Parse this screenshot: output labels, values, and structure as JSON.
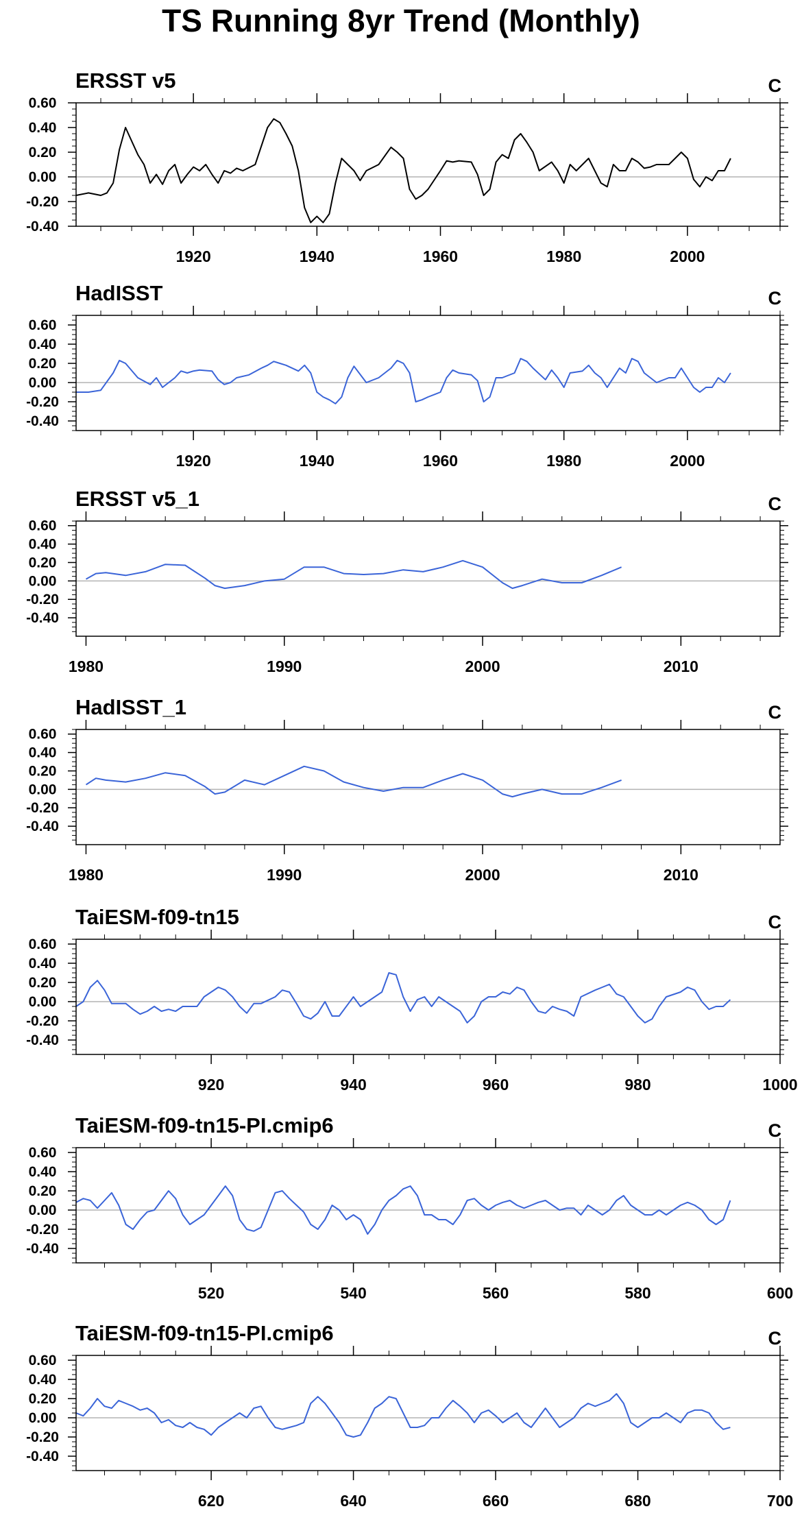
{
  "title": "TS Running 8yr Trend (Monthly)",
  "colors": {
    "obs_line": "#000000",
    "model_line": "#3a64d8",
    "zero_line": "#b3b3b3",
    "frame": "#000000"
  },
  "chart_data": [
    {
      "type": "line",
      "title": "ERSST v5",
      "units": "C",
      "color": "#000000",
      "xlim": [
        1901,
        2015
      ],
      "ylim": [
        -0.4,
        0.6
      ],
      "yticks": [
        -0.4,
        -0.2,
        0.0,
        0.2,
        0.4,
        0.6
      ],
      "ytick_labels": [
        "-0.40",
        "-0.20",
        "0.00",
        "0.20",
        "0.40",
        "0.60"
      ],
      "xticks": [
        1920,
        1940,
        1960,
        1980,
        2000
      ],
      "xtick_labels": [
        "1920",
        "1940",
        "1960",
        "1980",
        "2000"
      ],
      "x": [
        1901,
        1903,
        1905,
        1906,
        1907,
        1908,
        1909,
        1911,
        1912,
        1913,
        1914,
        1915,
        1916,
        1917,
        1918,
        1919,
        1920,
        1921,
        1922,
        1923,
        1924,
        1925,
        1926,
        1927,
        1928,
        1930,
        1931,
        1932,
        1933,
        1934,
        1935,
        1936,
        1937,
        1938,
        1939,
        1940,
        1941,
        1942,
        1943,
        1944,
        1945,
        1946,
        1947,
        1948,
        1950,
        1952,
        1953,
        1954,
        1955,
        1956,
        1957,
        1958,
        1960,
        1961,
        1962,
        1963,
        1965,
        1966,
        1967,
        1968,
        1969,
        1970,
        1971,
        1972,
        1973,
        1974,
        1975,
        1976,
        1978,
        1979,
        1980,
        1981,
        1982,
        1984,
        1985,
        1986,
        1987,
        1988,
        1989,
        1990,
        1991,
        1992,
        1993,
        1994,
        1995,
        1997,
        1998,
        1999,
        2000,
        2001,
        2002,
        2003,
        2004,
        2005,
        2006,
        2007
      ],
      "y": [
        -0.15,
        -0.13,
        -0.15,
        -0.13,
        -0.05,
        0.22,
        0.4,
        0.18,
        0.1,
        -0.05,
        0.02,
        -0.06,
        0.05,
        0.1,
        -0.05,
        0.02,
        0.08,
        0.05,
        0.1,
        0.02,
        -0.05,
        0.05,
        0.03,
        0.07,
        0.05,
        0.1,
        0.25,
        0.4,
        0.47,
        0.44,
        0.35,
        0.25,
        0.05,
        -0.25,
        -0.37,
        -0.32,
        -0.37,
        -0.3,
        -0.05,
        0.15,
        0.1,
        0.05,
        -0.03,
        0.05,
        0.1,
        0.24,
        0.2,
        0.15,
        -0.1,
        -0.18,
        -0.15,
        -0.1,
        0.05,
        0.13,
        0.12,
        0.13,
        0.12,
        0.02,
        -0.15,
        -0.1,
        0.12,
        0.18,
        0.15,
        0.3,
        0.35,
        0.28,
        0.2,
        0.05,
        0.12,
        0.05,
        -0.05,
        0.1,
        0.05,
        0.15,
        0.05,
        -0.05,
        -0.08,
        0.1,
        0.05,
        0.05,
        0.15,
        0.12,
        0.07,
        0.08,
        0.1,
        0.1,
        0.15,
        0.2,
        0.15,
        -0.02,
        -0.08,
        0.0,
        -0.03,
        0.05,
        0.05,
        0.15
      ]
    },
    {
      "type": "line",
      "title": "HadISST",
      "units": "C",
      "color": "#3a64d8",
      "xlim": [
        1901,
        2015
      ],
      "ylim": [
        -0.5,
        0.7
      ],
      "yticks": [
        -0.4,
        -0.2,
        0.0,
        0.2,
        0.4,
        0.6
      ],
      "ytick_labels": [
        "-0.40",
        "-0.20",
        "0.00",
        "0.20",
        "0.40",
        "0.60"
      ],
      "xticks": [
        1920,
        1940,
        1960,
        1980,
        2000
      ],
      "xtick_labels": [
        "1920",
        "1940",
        "1960",
        "1980",
        "2000"
      ],
      "x": [
        1901,
        1903,
        1905,
        1907,
        1908,
        1909,
        1911,
        1913,
        1914,
        1915,
        1917,
        1918,
        1919,
        1920,
        1921,
        1923,
        1924,
        1925,
        1926,
        1927,
        1929,
        1931,
        1932,
        1933,
        1934,
        1935,
        1937,
        1938,
        1939,
        1940,
        1941,
        1942,
        1943,
        1944,
        1945,
        1946,
        1948,
        1950,
        1952,
        1953,
        1954,
        1955,
        1956,
        1957,
        1958,
        1960,
        1961,
        1962,
        1963,
        1965,
        1966,
        1967,
        1968,
        1969,
        1970,
        1972,
        1973,
        1974,
        1975,
        1977,
        1978,
        1979,
        1980,
        1981,
        1983,
        1984,
        1985,
        1986,
        1987,
        1989,
        1990,
        1991,
        1992,
        1993,
        1995,
        1997,
        1998,
        1999,
        2000,
        2001,
        2002,
        2003,
        2004,
        2005,
        2006,
        2007
      ],
      "y": [
        -0.1,
        -0.1,
        -0.08,
        0.1,
        0.23,
        0.2,
        0.05,
        -0.02,
        0.05,
        -0.05,
        0.05,
        0.12,
        0.1,
        0.12,
        0.13,
        0.12,
        0.03,
        -0.02,
        0.0,
        0.05,
        0.08,
        0.15,
        0.18,
        0.22,
        0.2,
        0.18,
        0.12,
        0.18,
        0.1,
        -0.1,
        -0.15,
        -0.18,
        -0.22,
        -0.15,
        0.05,
        0.17,
        0.0,
        0.05,
        0.15,
        0.23,
        0.2,
        0.1,
        -0.2,
        -0.18,
        -0.15,
        -0.1,
        0.05,
        0.13,
        0.1,
        0.08,
        0.02,
        -0.2,
        -0.15,
        0.05,
        0.05,
        0.1,
        0.25,
        0.22,
        0.15,
        0.03,
        0.13,
        0.05,
        -0.05,
        0.1,
        0.12,
        0.18,
        0.1,
        0.05,
        -0.05,
        0.15,
        0.1,
        0.25,
        0.22,
        0.1,
        0.0,
        0.05,
        0.05,
        0.15,
        0.05,
        -0.05,
        -0.1,
        -0.05,
        -0.05,
        0.05,
        0.0,
        0.1
      ]
    },
    {
      "type": "line",
      "title": "ERSST v5_1",
      "units": "C",
      "color": "#3a64d8",
      "xlim": [
        1979.5,
        2015
      ],
      "ylim": [
        -0.6,
        0.65
      ],
      "yticks": [
        -0.4,
        -0.2,
        0.0,
        0.2,
        0.4,
        0.6
      ],
      "ytick_labels": [
        "-0.40",
        "-0.20",
        "0.00",
        "0.20",
        "0.40",
        "0.60"
      ],
      "xticks": [
        1980,
        1990,
        2000,
        2010
      ],
      "xtick_labels": [
        "1980",
        "1990",
        "2000",
        "2010"
      ],
      "x": [
        1980,
        1980.5,
        1981,
        1982,
        1983,
        1984,
        1985,
        1986,
        1986.5,
        1987,
        1988,
        1989,
        1990,
        1991,
        1992,
        1993,
        1994,
        1995,
        1996,
        1997,
        1998,
        1999,
        2000,
        2001,
        2001.5,
        2002,
        2003,
        2004,
        2005,
        2006,
        2007
      ],
      "y": [
        0.02,
        0.08,
        0.09,
        0.06,
        0.1,
        0.18,
        0.17,
        0.03,
        -0.05,
        -0.08,
        -0.05,
        0.0,
        0.02,
        0.15,
        0.15,
        0.08,
        0.07,
        0.08,
        0.12,
        0.1,
        0.15,
        0.22,
        0.15,
        -0.02,
        -0.08,
        -0.05,
        0.02,
        -0.02,
        -0.02,
        0.06,
        0.15
      ]
    },
    {
      "type": "line",
      "title": "HadISST_1",
      "units": "C",
      "color": "#3a64d8",
      "xlim": [
        1979.5,
        2015
      ],
      "ylim": [
        -0.6,
        0.65
      ],
      "yticks": [
        -0.4,
        -0.2,
        0.0,
        0.2,
        0.4,
        0.6
      ],
      "ytick_labels": [
        "-0.40",
        "-0.20",
        "0.00",
        "0.20",
        "0.40",
        "0.60"
      ],
      "xticks": [
        1980,
        1990,
        2000,
        2010
      ],
      "xtick_labels": [
        "1980",
        "1990",
        "2000",
        "2010"
      ],
      "x": [
        1980,
        1980.5,
        1981,
        1982,
        1983,
        1984,
        1985,
        1986,
        1986.5,
        1987,
        1988,
        1989,
        1990,
        1991,
        1992,
        1993,
        1994,
        1995,
        1996,
        1997,
        1998,
        1999,
        2000,
        2001,
        2001.5,
        2002,
        2003,
        2004,
        2005,
        2006,
        2007
      ],
      "y": [
        0.05,
        0.12,
        0.1,
        0.08,
        0.12,
        0.18,
        0.15,
        0.03,
        -0.05,
        -0.03,
        0.1,
        0.05,
        0.15,
        0.25,
        0.2,
        0.08,
        0.02,
        -0.02,
        0.02,
        0.02,
        0.1,
        0.17,
        0.1,
        -0.05,
        -0.08,
        -0.05,
        0.0,
        -0.05,
        -0.05,
        0.02,
        0.1
      ]
    },
    {
      "type": "line",
      "title": "TaiESM-f09-tn15",
      "units": "C",
      "color": "#3a64d8",
      "xlim": [
        901,
        1000
      ],
      "ylim": [
        -0.55,
        0.65
      ],
      "yticks": [
        -0.4,
        -0.2,
        0.0,
        0.2,
        0.4,
        0.6
      ],
      "ytick_labels": [
        "-0.40",
        "-0.20",
        "0.00",
        "0.20",
        "0.40",
        "0.60"
      ],
      "xticks": [
        920,
        940,
        960,
        980,
        1000
      ],
      "xtick_labels": [
        "920",
        "940",
        "960",
        "980",
        "1000"
      ],
      "x": [
        901,
        902,
        903,
        904,
        905,
        906,
        908,
        909,
        910,
        911,
        912,
        913,
        914,
        915,
        916,
        918,
        919,
        920,
        921,
        922,
        923,
        924,
        925,
        926,
        927,
        929,
        930,
        931,
        932,
        933,
        934,
        935,
        936,
        937,
        938,
        940,
        941,
        942,
        943,
        944,
        945,
        946,
        947,
        948,
        949,
        950,
        951,
        952,
        953,
        954,
        955,
        956,
        957,
        958,
        959,
        960,
        961,
        962,
        963,
        964,
        965,
        966,
        967,
        968,
        969,
        970,
        971,
        972,
        974,
        975,
        976,
        977,
        978,
        979,
        980,
        981,
        982,
        983,
        984,
        986,
        987,
        988,
        989,
        990,
        991,
        992,
        993
      ],
      "y": [
        -0.05,
        0.0,
        0.15,
        0.22,
        0.12,
        -0.02,
        -0.02,
        -0.08,
        -0.13,
        -0.1,
        -0.05,
        -0.1,
        -0.08,
        -0.1,
        -0.05,
        -0.05,
        0.05,
        0.1,
        0.15,
        0.12,
        0.05,
        -0.05,
        -0.12,
        -0.02,
        -0.02,
        0.05,
        0.12,
        0.1,
        -0.02,
        -0.15,
        -0.18,
        -0.12,
        0.0,
        -0.15,
        -0.15,
        0.05,
        -0.05,
        0.0,
        0.05,
        0.1,
        0.3,
        0.28,
        0.05,
        -0.1,
        0.02,
        0.05,
        -0.05,
        0.05,
        0.0,
        -0.05,
        -0.1,
        -0.22,
        -0.15,
        0.0,
        0.05,
        0.05,
        0.1,
        0.08,
        0.15,
        0.12,
        0.0,
        -0.1,
        -0.12,
        -0.05,
        -0.08,
        -0.1,
        -0.15,
        0.05,
        0.12,
        0.15,
        0.18,
        0.08,
        0.05,
        -0.05,
        -0.15,
        -0.22,
        -0.18,
        -0.05,
        0.05,
        0.1,
        0.15,
        0.12,
        0.0,
        -0.08,
        -0.05,
        -0.05,
        0.02
      ]
    },
    {
      "type": "line",
      "title": "TaiESM-f09-tn15-PI.cmip6",
      "units": "C",
      "color": "#3a64d8",
      "xlim": [
        501,
        600
      ],
      "ylim": [
        -0.55,
        0.65
      ],
      "yticks": [
        -0.4,
        -0.2,
        0.0,
        0.2,
        0.4,
        0.6
      ],
      "ytick_labels": [
        "-0.40",
        "-0.20",
        "0.00",
        "0.20",
        "0.40",
        "0.60"
      ],
      "xticks": [
        520,
        540,
        560,
        580,
        600
      ],
      "xtick_labels": [
        "520",
        "540",
        "560",
        "580",
        "600"
      ],
      "x": [
        501,
        502,
        503,
        504,
        505,
        506,
        507,
        508,
        509,
        510,
        511,
        512,
        513,
        514,
        515,
        516,
        517,
        518,
        519,
        520,
        521,
        522,
        523,
        524,
        525,
        526,
        527,
        528,
        529,
        530,
        531,
        532,
        533,
        534,
        535,
        536,
        537,
        538,
        539,
        540,
        541,
        542,
        543,
        544,
        545,
        546,
        547,
        548,
        549,
        550,
        551,
        552,
        553,
        554,
        555,
        556,
        557,
        558,
        559,
        560,
        561,
        562,
        563,
        564,
        565,
        566,
        567,
        568,
        569,
        570,
        571,
        572,
        573,
        574,
        575,
        576,
        577,
        578,
        579,
        580,
        581,
        582,
        583,
        584,
        585,
        586,
        587,
        588,
        589,
        590,
        591,
        592,
        593
      ],
      "y": [
        0.08,
        0.12,
        0.1,
        0.02,
        0.1,
        0.18,
        0.05,
        -0.15,
        -0.2,
        -0.1,
        -0.02,
        0.0,
        0.1,
        0.2,
        0.12,
        -0.05,
        -0.15,
        -0.1,
        -0.05,
        0.05,
        0.15,
        0.25,
        0.15,
        -0.1,
        -0.2,
        -0.22,
        -0.18,
        0.0,
        0.18,
        0.2,
        0.12,
        0.05,
        -0.02,
        -0.15,
        -0.2,
        -0.1,
        0.05,
        0.0,
        -0.1,
        -0.05,
        -0.1,
        -0.25,
        -0.15,
        0.0,
        0.1,
        0.15,
        0.22,
        0.25,
        0.15,
        -0.05,
        -0.05,
        -0.1,
        -0.1,
        -0.15,
        -0.05,
        0.1,
        0.12,
        0.05,
        0.0,
        0.05,
        0.08,
        0.1,
        0.05,
        0.02,
        0.05,
        0.08,
        0.1,
        0.05,
        0.0,
        0.02,
        0.02,
        -0.05,
        0.05,
        0.0,
        -0.05,
        0.0,
        0.1,
        0.15,
        0.05,
        0.0,
        -0.05,
        -0.05,
        0.0,
        -0.05,
        0.0,
        0.05,
        0.08,
        0.05,
        0.0,
        -0.1,
        -0.15,
        -0.1,
        0.1
      ]
    },
    {
      "type": "line",
      "title": "TaiESM-f09-tn15-PI.cmip6",
      "units": "C",
      "color": "#3a64d8",
      "xlim": [
        601,
        700
      ],
      "ylim": [
        -0.55,
        0.65
      ],
      "yticks": [
        -0.4,
        -0.2,
        0.0,
        0.2,
        0.4,
        0.6
      ],
      "ytick_labels": [
        "-0.40",
        "-0.20",
        "0.00",
        "0.20",
        "0.40",
        "0.60"
      ],
      "xticks": [
        620,
        640,
        660,
        680,
        700
      ],
      "xtick_labels": [
        "620",
        "640",
        "660",
        "680",
        "700"
      ],
      "x": [
        601,
        602,
        603,
        604,
        605,
        606,
        607,
        608,
        609,
        610,
        611,
        612,
        613,
        614,
        615,
        616,
        617,
        618,
        619,
        620,
        621,
        622,
        623,
        624,
        625,
        626,
        627,
        628,
        629,
        630,
        631,
        632,
        633,
        634,
        635,
        636,
        637,
        638,
        639,
        640,
        641,
        642,
        643,
        644,
        645,
        646,
        647,
        648,
        649,
        650,
        651,
        652,
        653,
        654,
        655,
        656,
        657,
        658,
        659,
        660,
        661,
        662,
        663,
        664,
        665,
        666,
        667,
        668,
        669,
        670,
        671,
        672,
        673,
        674,
        675,
        676,
        677,
        678,
        679,
        680,
        681,
        682,
        683,
        684,
        685,
        686,
        687,
        688,
        689,
        690,
        691,
        692,
        693
      ],
      "y": [
        0.05,
        0.02,
        0.1,
        0.2,
        0.12,
        0.1,
        0.18,
        0.15,
        0.12,
        0.08,
        0.1,
        0.05,
        -0.05,
        -0.02,
        -0.08,
        -0.1,
        -0.05,
        -0.1,
        -0.12,
        -0.18,
        -0.1,
        -0.05,
        0.0,
        0.05,
        0.0,
        0.1,
        0.12,
        0.0,
        -0.1,
        -0.12,
        -0.1,
        -0.08,
        -0.05,
        0.15,
        0.22,
        0.15,
        0.05,
        -0.05,
        -0.18,
        -0.2,
        -0.18,
        -0.05,
        0.1,
        0.15,
        0.22,
        0.2,
        0.05,
        -0.1,
        -0.1,
        -0.08,
        0.0,
        0.0,
        0.1,
        0.18,
        0.12,
        0.05,
        -0.05,
        0.05,
        0.08,
        0.02,
        -0.05,
        0.0,
        0.05,
        -0.05,
        -0.1,
        0.0,
        0.1,
        0.0,
        -0.1,
        -0.05,
        0.0,
        0.1,
        0.15,
        0.12,
        0.15,
        0.18,
        0.25,
        0.15,
        -0.05,
        -0.1,
        -0.05,
        0.0,
        0.0,
        0.05,
        0.0,
        -0.05,
        0.05,
        0.08,
        0.08,
        0.05,
        -0.05,
        -0.12,
        -0.1
      ]
    }
  ]
}
